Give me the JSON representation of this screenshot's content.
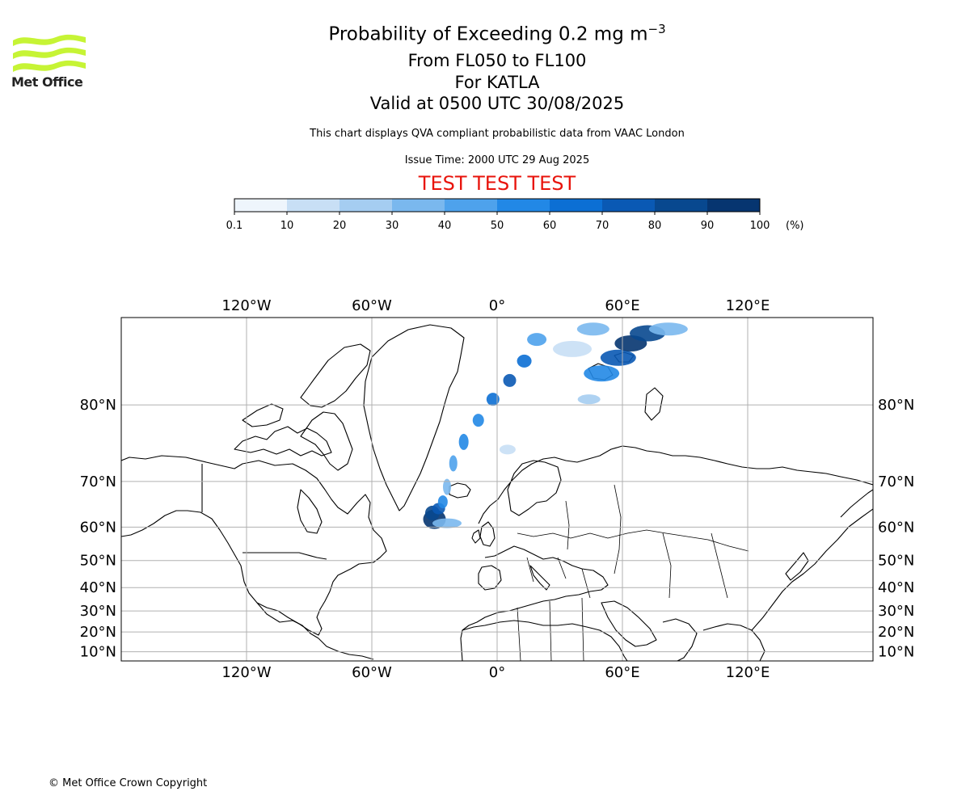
{
  "header": {
    "logo_text": "Met Office",
    "title_main": "Probability of Exceeding 0.2 mg m",
    "title_sup": "−3",
    "flight_levels": "From FL050 to FL100",
    "volcano": "For KATLA",
    "valid_time": "Valid at 0500 UTC 30/08/2025",
    "note": "This chart displays QVA compliant probabilistic data from VAAC London",
    "issue_time": "Issue Time: 2000 UTC 29 Aug 2025",
    "test_banner": "TEST TEST TEST"
  },
  "colorbar": {
    "ticks": [
      "0.1",
      "10",
      "20",
      "30",
      "40",
      "50",
      "60",
      "70",
      "80",
      "90",
      "100"
    ],
    "unit": "(%)",
    "colors": [
      "#eef5fc",
      "#c8dff5",
      "#a5cdf1",
      "#7ab8ee",
      "#4ea2ec",
      "#2288e6",
      "#0c6fd4",
      "#0a59b4",
      "#08488f",
      "#063570"
    ]
  },
  "map": {
    "lon_labels": [
      "120°W",
      "60°W",
      "0°",
      "60°E",
      "120°E"
    ],
    "lon_values": [
      -120,
      -60,
      0,
      60,
      120
    ],
    "lat_labels": [
      "80°N",
      "70°N",
      "60°N",
      "50°N",
      "40°N",
      "30°N",
      "20°N",
      "10°N"
    ],
    "lat_values": [
      80,
      70,
      60,
      50,
      40,
      30,
      20,
      10
    ],
    "lon_range": [
      -180,
      180
    ],
    "projection": "Mercator",
    "gridlines": true,
    "plume_color_max": "#042c5c"
  },
  "footer": {
    "copyright": "© Met Office Crown Copyright"
  }
}
